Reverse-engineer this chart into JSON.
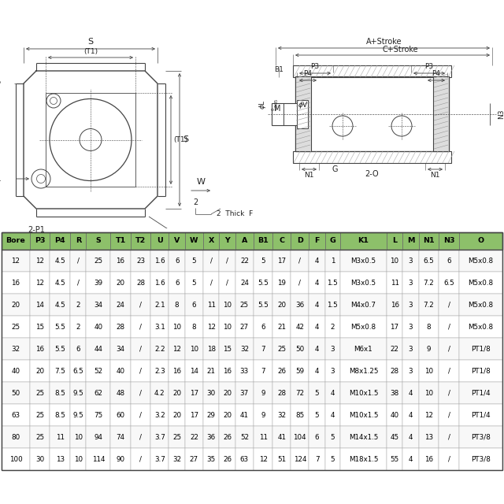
{
  "header_bg": "#8dc06a",
  "columns": [
    "Bore",
    "P3",
    "P4",
    "R",
    "S",
    "T1",
    "T2",
    "U",
    "V",
    "W",
    "X",
    "Y",
    "A",
    "B1",
    "C",
    "D",
    "F",
    "G",
    "K1",
    "L",
    "M",
    "N1",
    "N3",
    "O"
  ],
  "rows": [
    [
      "12",
      "12",
      "4.5",
      "/",
      "25",
      "16",
      "23",
      "1.6",
      "6",
      "5",
      "/",
      "/",
      "22",
      "5",
      "17",
      "/",
      "4",
      "1",
      "M3x0.5",
      "10",
      "3",
      "6.5",
      "6",
      "M5x0.8"
    ],
    [
      "16",
      "12",
      "4.5",
      "/",
      "39",
      "20",
      "28",
      "1.6",
      "6",
      "5",
      "/",
      "/",
      "24",
      "5.5",
      "19",
      "/",
      "4",
      "1.5",
      "M3x0.5",
      "11",
      "3",
      "7.2",
      "6.5",
      "M5x0.8"
    ],
    [
      "20",
      "14",
      "4.5",
      "2",
      "34",
      "24",
      "/",
      "2.1",
      "8",
      "6",
      "11",
      "10",
      "25",
      "5.5",
      "20",
      "36",
      "4",
      "1.5",
      "M4x0.7",
      "16",
      "3",
      "7.2",
      "/",
      "M5x0.8"
    ],
    [
      "25",
      "15",
      "5.5",
      "2",
      "40",
      "28",
      "/",
      "3.1",
      "10",
      "8",
      "12",
      "10",
      "27",
      "6",
      "21",
      "42",
      "4",
      "2",
      "M5x0.8",
      "17",
      "3",
      "8",
      "/",
      "M5x0.8"
    ],
    [
      "32",
      "16",
      "5.5",
      "6",
      "44",
      "34",
      "/",
      "2.2",
      "12",
      "10",
      "18",
      "15",
      "32",
      "7",
      "25",
      "50",
      "4",
      "3",
      "M6x1",
      "22",
      "3",
      "9",
      "/",
      "PT1/8"
    ],
    [
      "40",
      "20",
      "7.5",
      "6.5",
      "52",
      "40",
      "/",
      "2.3",
      "16",
      "14",
      "21",
      "16",
      "33",
      "7",
      "26",
      "59",
      "4",
      "3",
      "M8x1.25",
      "28",
      "3",
      "10",
      "/",
      "PT1/8"
    ],
    [
      "50",
      "25",
      "8.5",
      "9.5",
      "62",
      "48",
      "/",
      "4.2",
      "20",
      "17",
      "30",
      "20",
      "37",
      "9",
      "28",
      "72",
      "5",
      "4",
      "M10x1.5",
      "38",
      "4",
      "10",
      "/",
      "PT1/4"
    ],
    [
      "63",
      "25",
      "8.5",
      "9.5",
      "75",
      "60",
      "/",
      "3.2",
      "20",
      "17",
      "29",
      "20",
      "41",
      "9",
      "32",
      "85",
      "5",
      "4",
      "M10x1.5",
      "40",
      "4",
      "12",
      "/",
      "PT1/4"
    ],
    [
      "80",
      "25",
      "11",
      "10",
      "94",
      "74",
      "/",
      "3.7",
      "25",
      "22",
      "36",
      "26",
      "52",
      "11",
      "41",
      "104",
      "6",
      "5",
      "M14x1.5",
      "45",
      "4",
      "13",
      "/",
      "PT3/8"
    ],
    [
      "100",
      "30",
      "13",
      "10",
      "114",
      "90",
      "/",
      "3.7",
      "32",
      "27",
      "35",
      "26",
      "63",
      "12",
      "51",
      "124",
      "7",
      "5",
      "M18x1.5",
      "55",
      "4",
      "16",
      "/",
      "PT3/8"
    ]
  ],
  "line_color": "#444444",
  "text_color": "#222222"
}
